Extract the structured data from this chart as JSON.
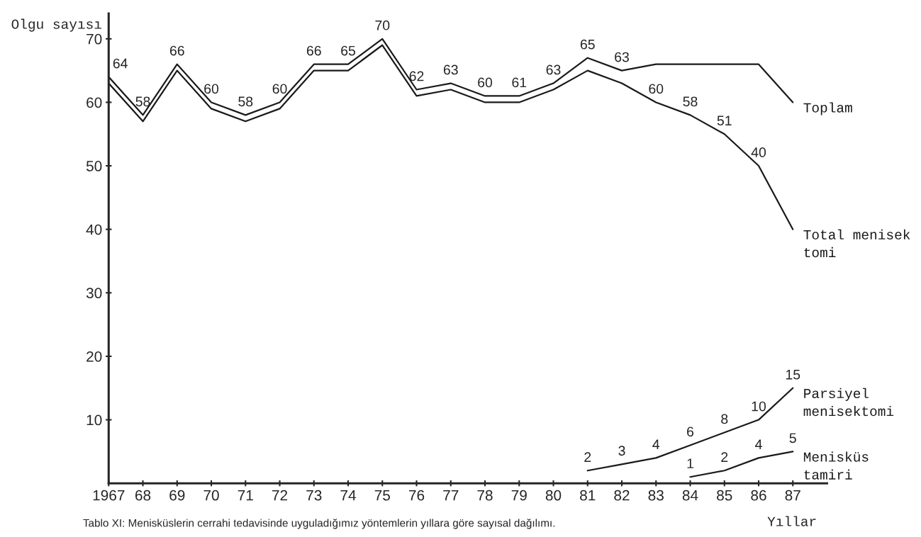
{
  "chart_data": {
    "type": "line",
    "xlabel": "Yıllar",
    "ylabel": "Olgu sayısı",
    "categories": [
      "1967",
      "68",
      "69",
      "70",
      "71",
      "72",
      "73",
      "74",
      "75",
      "76",
      "77",
      "78",
      "79",
      "80",
      "81",
      "82",
      "83",
      "84",
      "85",
      "86",
      "87"
    ],
    "series": [
      {
        "name": "Toplam",
        "color": "#1a1a1a",
        "values": [
          64,
          58,
          66,
          60,
          58,
          60,
          66,
          66,
          70,
          62,
          63,
          61,
          61,
          63,
          67,
          65,
          66,
          66,
          66,
          66,
          60
        ]
      },
      {
        "name": "Total menisek\ntomi",
        "color": "#1a1a1a",
        "values": [
          63,
          57,
          65,
          59,
          57,
          59,
          65,
          65,
          69,
          61,
          62,
          60,
          60,
          62,
          65,
          63,
          60,
          58,
          55,
          50,
          40
        ]
      },
      {
        "name": "Parsiyel\nmenisektomi",
        "color": "#1a1a1a",
        "values": [
          null,
          null,
          null,
          null,
          null,
          null,
          null,
          null,
          null,
          null,
          null,
          null,
          null,
          null,
          2,
          3,
          4,
          6,
          8,
          10,
          15
        ]
      },
      {
        "name": "Menisküs\ntamiri",
        "color": "#1a1a1a",
        "values": [
          null,
          null,
          null,
          null,
          null,
          null,
          null,
          null,
          null,
          null,
          null,
          null,
          null,
          null,
          null,
          null,
          null,
          1,
          2,
          4,
          5
        ]
      }
    ],
    "ylim": [
      0,
      74
    ],
    "yticks": [
      10,
      20,
      30,
      40,
      50,
      60,
      70
    ],
    "grid": false,
    "legend": false,
    "marker": "none",
    "line_style": "solid",
    "annotations": [
      {
        "text": "64",
        "x": "1967",
        "y": 64
      },
      {
        "text": "58",
        "x": "68",
        "y": 58
      },
      {
        "text": "66",
        "x": "69",
        "y": 66
      },
      {
        "text": "60",
        "x": "70",
        "y": 60
      },
      {
        "text": "58",
        "x": "71",
        "y": 58
      },
      {
        "text": "60",
        "x": "72",
        "y": 60
      },
      {
        "text": "66",
        "x": "73",
        "y": 66
      },
      {
        "text": "65",
        "x": "74",
        "y": 66
      },
      {
        "text": "70",
        "x": "75",
        "y": 70
      },
      {
        "text": "62",
        "x": "76",
        "y": 62
      },
      {
        "text": "63",
        "x": "77",
        "y": 63
      },
      {
        "text": "60",
        "x": "78",
        "y": 61
      },
      {
        "text": "61",
        "x": "79",
        "y": 61
      },
      {
        "text": "63",
        "x": "80",
        "y": 63
      },
      {
        "text": "65",
        "x": "81",
        "y": 67
      },
      {
        "text": "63",
        "x": "82",
        "y": 65
      },
      {
        "text": "60",
        "x": "83",
        "y": 60
      },
      {
        "text": "58",
        "x": "84",
        "y": 58
      },
      {
        "text": "51",
        "x": "85",
        "y": 55
      },
      {
        "text": "40",
        "x": "86",
        "y": 50
      },
      {
        "text": "2",
        "x": "81",
        "y": 2
      },
      {
        "text": "3",
        "x": "82",
        "y": 3
      },
      {
        "text": "4",
        "x": "83",
        "y": 4
      },
      {
        "text": "6",
        "x": "84",
        "y": 6
      },
      {
        "text": "8",
        "x": "85",
        "y": 8
      },
      {
        "text": "10",
        "x": "86",
        "y": 10
      },
      {
        "text": "15",
        "x": "87",
        "y": 15
      },
      {
        "text": "1",
        "x": "84",
        "y": 1
      },
      {
        "text": "2",
        "x": "85",
        "y": 2
      },
      {
        "text": "4",
        "x": "86",
        "y": 4
      },
      {
        "text": "5",
        "x": "87",
        "y": 5
      },
      "Tablo XI: Menisküslerin cerrahi tedavisinde uyguladığımız yöntemlerin yıllara göre sayısal dağılımı."
    ]
  }
}
